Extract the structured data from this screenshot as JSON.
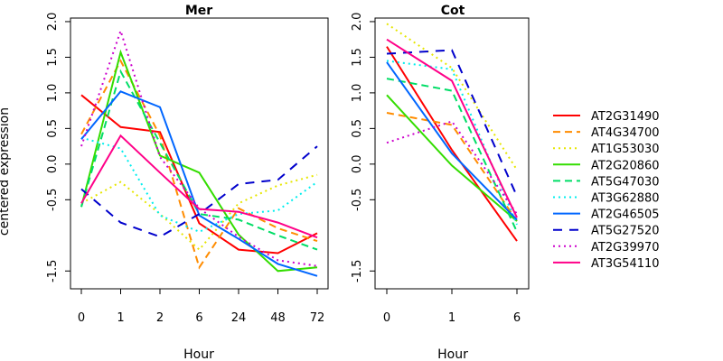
{
  "chart_data": [
    {
      "type": "line",
      "title": "Mer",
      "xlabel": "Hour",
      "ylabel": "centered expression",
      "categories": [
        "0",
        "1",
        "2",
        "6",
        "24",
        "48",
        "72"
      ],
      "yticks": [
        "-1.5",
        "-0.5",
        "0.0",
        "0.5",
        "1.0",
        "1.5",
        "2.0"
      ],
      "ylim": [
        -1.75,
        2.05
      ],
      "series": [
        {
          "name": "AT2G31490",
          "color": "#FF0000",
          "dash": "solid",
          "values": [
            0.97,
            0.52,
            0.45,
            -0.83,
            -1.2,
            -1.25,
            -0.97
          ]
        },
        {
          "name": "AT4G34700",
          "color": "#FF8C00",
          "dash": "longdash",
          "values": [
            0.42,
            1.45,
            0.4,
            -1.45,
            -0.62,
            -0.9,
            -1.08
          ]
        },
        {
          "name": "AT1G53030",
          "color": "#E6E600",
          "dash": "dotted",
          "values": [
            -0.55,
            -0.25,
            -0.7,
            -1.2,
            -0.55,
            -0.3,
            -0.15
          ]
        },
        {
          "name": "AT2G20860",
          "color": "#33DD00",
          "dash": "solid",
          "values": [
            -0.6,
            1.57,
            0.12,
            -0.12,
            -0.99,
            -1.5,
            -1.45
          ]
        },
        {
          "name": "AT5G47030",
          "color": "#00DD66",
          "dash": "longdash",
          "values": [
            -0.6,
            1.3,
            0.3,
            -0.7,
            -0.78,
            -1.0,
            -1.2
          ]
        },
        {
          "name": "AT3G62880",
          "color": "#00EEEE",
          "dash": "dotted",
          "values": [
            0.37,
            0.22,
            -0.72,
            -0.95,
            -0.7,
            -0.65,
            -0.25
          ]
        },
        {
          "name": "AT2G46505",
          "color": "#0066FF",
          "dash": "solid",
          "values": [
            0.35,
            1.02,
            0.8,
            -0.72,
            -1.05,
            -1.4,
            -1.57
          ]
        },
        {
          "name": "AT5G27520",
          "color": "#0000CC",
          "dash": "shortdash",
          "values": [
            -0.35,
            -0.82,
            -1.02,
            -0.7,
            -0.28,
            -0.22,
            0.25
          ]
        },
        {
          "name": "AT2G39970",
          "color": "#CC00CC",
          "dash": "dotted",
          "values": [
            0.25,
            1.87,
            0.1,
            -0.62,
            -1.02,
            -1.35,
            -1.43
          ]
        },
        {
          "name": "AT3G54110",
          "color": "#FF0088",
          "dash": "solid",
          "values": [
            -0.55,
            0.4,
            -0.12,
            -0.63,
            -0.67,
            -0.82,
            -1.03
          ]
        }
      ]
    },
    {
      "type": "line",
      "title": "Cot",
      "xlabel": "Hour",
      "ylabel": "",
      "categories": [
        "0",
        "1",
        "6"
      ],
      "yticks": [
        "-1.5",
        "-0.5",
        "0.0",
        "0.5",
        "1.0",
        "1.5",
        "2.0"
      ],
      "ylim": [
        -1.75,
        2.05
      ],
      "series": [
        {
          "name": "AT2G31490",
          "color": "#FF0000",
          "dash": "solid",
          "values": [
            1.65,
            0.2,
            -1.08
          ]
        },
        {
          "name": "AT4G34700",
          "color": "#FF8C00",
          "dash": "longdash",
          "values": [
            0.72,
            0.55,
            -0.8
          ]
        },
        {
          "name": "AT1G53030",
          "color": "#E6E600",
          "dash": "dotted",
          "values": [
            1.97,
            1.35,
            -0.08
          ]
        },
        {
          "name": "AT2G20860",
          "color": "#33DD00",
          "dash": "solid",
          "values": [
            0.97,
            -0.02,
            -0.8
          ]
        },
        {
          "name": "AT5G47030",
          "color": "#00DD66",
          "dash": "longdash",
          "values": [
            1.2,
            1.03,
            -0.95
          ]
        },
        {
          "name": "AT3G62880",
          "color": "#00EEEE",
          "dash": "dotted",
          "values": [
            1.45,
            1.33,
            -0.85
          ]
        },
        {
          "name": "AT2G46505",
          "color": "#0066FF",
          "dash": "solid",
          "values": [
            1.43,
            0.15,
            -0.78
          ]
        },
        {
          "name": "AT5G27520",
          "color": "#0000CC",
          "dash": "shortdash",
          "values": [
            1.55,
            1.6,
            -0.45
          ]
        },
        {
          "name": "AT2G39970",
          "color": "#CC00CC",
          "dash": "dotted",
          "values": [
            0.3,
            0.6,
            -0.7
          ]
        },
        {
          "name": "AT3G54110",
          "color": "#FF0088",
          "dash": "solid",
          "values": [
            1.75,
            1.17,
            -0.75
          ]
        }
      ]
    }
  ]
}
